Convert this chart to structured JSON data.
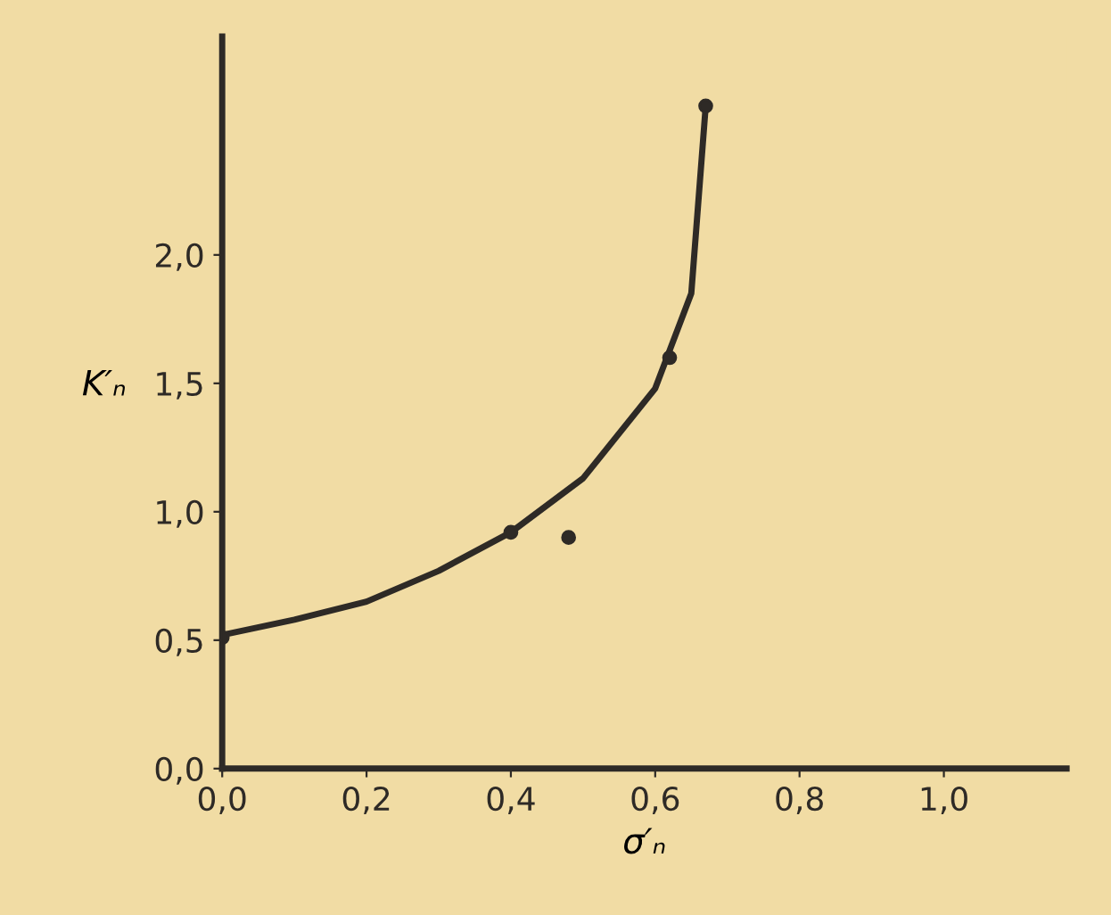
{
  "chart_data": {
    "type": "line",
    "xlabel": "σ′ₙ",
    "ylabel": "K′ₙ",
    "xlim": [
      0,
      1.17
    ],
    "ylim": [
      0,
      2.85
    ],
    "xticks": [
      {
        "value": 0,
        "label": "0,0"
      },
      {
        "value": 0.2,
        "label": "0,2"
      },
      {
        "value": 0.4,
        "label": "0,4"
      },
      {
        "value": 0.6,
        "label": "0,6"
      },
      {
        "value": 0.8,
        "label": "0,8"
      },
      {
        "value": 1.0,
        "label": "1,0"
      }
    ],
    "yticks": [
      {
        "value": 0,
        "label": "0,0"
      },
      {
        "value": 0.5,
        "label": "0,5"
      },
      {
        "value": 1.0,
        "label": "1,0"
      },
      {
        "value": 1.5,
        "label": "1,5"
      },
      {
        "value": 2.0,
        "label": "2,0"
      }
    ],
    "grid": false,
    "legend": false,
    "series": [
      {
        "color": "#2e2a26",
        "marker": "none",
        "x": [
          0,
          0.1,
          0.2,
          0.3,
          0.4,
          0.5,
          0.6,
          0.65,
          0.67
        ],
        "values": [
          0.52,
          0.58,
          0.65,
          0.77,
          0.92,
          1.13,
          1.48,
          1.85,
          2.58
        ]
      },
      {
        "type": "scatter",
        "color": "#2e2a26",
        "marker": "circle",
        "x": [
          0,
          0.4,
          0.48,
          0.62,
          0.67
        ],
        "values": [
          0.51,
          0.92,
          0.9,
          1.6,
          2.58
        ]
      }
    ]
  }
}
